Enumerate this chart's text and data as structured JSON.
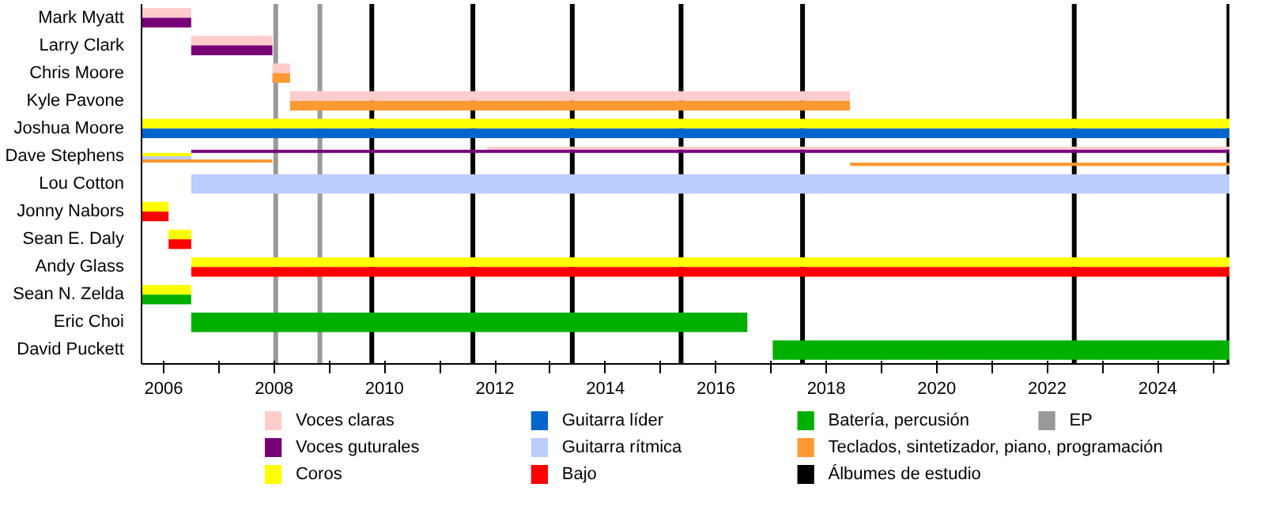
{
  "chart_data": {
    "type": "bar",
    "orientation": "horizontal",
    "categories": [
      "Mark Myatt",
      "Larry Clark",
      "Chris Moore",
      "Kyle Pavone",
      "Joshua Moore",
      "Dave Stephens",
      "Lou Cotton",
      "Jonny Nabors",
      "Sean E. Daly",
      "Andy Glass",
      "Sean N. Zelda",
      "Eric Choi",
      "David Puckett"
    ],
    "series": [
      {
        "name": "Voces claras",
        "color": "#ffcccc",
        "base": [
          2005.6,
          2006.5,
          2007.97,
          2008.29,
          null,
          2011.86,
          null,
          null,
          null,
          null,
          null,
          null,
          null
        ],
        "values": [
          0.9,
          1.47,
          0.32,
          10.14,
          null,
          13.44,
          null,
          null,
          null,
          null,
          null,
          null,
          null
        ]
      },
      {
        "name": "Voces guturales",
        "color": "#770077",
        "base": [
          2005.6,
          2006.5,
          null,
          null,
          null,
          2006.5,
          null,
          null,
          null,
          null,
          null,
          null,
          null
        ],
        "values": [
          0.9,
          1.47,
          null,
          null,
          null,
          18.8,
          null,
          null,
          null,
          null,
          null,
          null,
          null
        ]
      },
      {
        "name": "Coros",
        "color": "#ffff00",
        "base": [
          null,
          null,
          null,
          null,
          2005.6,
          2005.6,
          null,
          2005.6,
          2006.09,
          2006.5,
          2005.6,
          null,
          null
        ],
        "values": [
          null,
          null,
          null,
          null,
          19.7,
          0.9,
          null,
          0.49,
          0.41,
          18.8,
          0.9,
          null,
          null
        ]
      },
      {
        "name": "Guitarra líder",
        "color": "#0066cc",
        "base": [
          null,
          null,
          null,
          null,
          2005.6,
          null,
          null,
          null,
          null,
          null,
          null,
          null,
          null
        ],
        "values": [
          null,
          null,
          null,
          null,
          19.7,
          null,
          null,
          null,
          null,
          null,
          null,
          null,
          null
        ]
      },
      {
        "name": "Guitarra rítmica",
        "color": "#bbccff",
        "base": [
          null,
          null,
          null,
          null,
          null,
          2005.6,
          2006.5,
          null,
          null,
          null,
          null,
          null,
          null
        ],
        "values": [
          null,
          null,
          null,
          null,
          null,
          0.9,
          18.8,
          null,
          null,
          null,
          null,
          null,
          null
        ]
      },
      {
        "name": "Bajo",
        "color": "#ff0000",
        "base": [
          null,
          null,
          null,
          null,
          null,
          null,
          null,
          2005.6,
          2006.09,
          2006.5,
          null,
          null,
          null
        ],
        "values": [
          null,
          null,
          null,
          null,
          null,
          null,
          null,
          0.49,
          0.41,
          18.8,
          null,
          null,
          null
        ]
      },
      {
        "name": "Batería, percusión",
        "color": "#00b000",
        "base": [
          null,
          null,
          null,
          null,
          null,
          null,
          null,
          null,
          null,
          null,
          2005.6,
          2006.5,
          2017.03
        ],
        "values": [
          null,
          null,
          null,
          null,
          null,
          null,
          null,
          null,
          null,
          null,
          0.9,
          10.07,
          8.27
        ]
      },
      {
        "name": "Teclados, sintetizador, piano, programación",
        "color": "#ff9933",
        "base": [
          null,
          null,
          2007.97,
          2008.29,
          null,
          2005.6,
          null,
          null,
          null,
          null,
          null,
          null,
          null
        ],
        "values": [
          null,
          null,
          0.32,
          10.14,
          null,
          2.37,
          null,
          null,
          null,
          null,
          null,
          null,
          null
        ]
      },
      {
        "color": "#ff9933",
        "base": [
          null,
          null,
          null,
          null,
          null,
          2018.43,
          null,
          null,
          null,
          null,
          null,
          null,
          null
        ],
        "values": [
          null,
          null,
          null,
          null,
          null,
          6.87,
          null,
          null,
          null,
          null,
          null,
          null,
          null
        ]
      }
    ],
    "ref_lines": [
      {
        "axis": "x",
        "value": 2009.77,
        "label": "Álbumes de estudio",
        "color": "#000000"
      },
      {
        "axis": "x",
        "value": 2011.6,
        "label": null,
        "color": "#000000"
      },
      {
        "axis": "x",
        "value": 2013.4,
        "label": null,
        "color": "#000000"
      },
      {
        "axis": "x",
        "value": 2015.37,
        "label": null,
        "color": "#000000"
      },
      {
        "axis": "x",
        "value": 2017.57,
        "label": null,
        "color": "#000000"
      },
      {
        "axis": "x",
        "value": 2022.49,
        "label": null,
        "color": "#000000"
      },
      {
        "axis": "x",
        "value": 2025.29,
        "label": null,
        "color": "#000000"
      },
      {
        "axis": "x",
        "value": 2008.03,
        "label": "EP",
        "color": "#999999"
      },
      {
        "axis": "x",
        "value": 2008.83,
        "label": null,
        "color": "#999999"
      }
    ],
    "xlim": [
      2005.6,
      2025.3
    ],
    "xticks": [
      2006,
      {
        "value": 2007,
        "label": null
      },
      2008,
      {
        "value": 2009,
        "label": null
      },
      2010,
      {
        "value": 2011,
        "label": null
      },
      2012,
      {
        "value": 2013,
        "label": null
      },
      2014,
      {
        "value": 2015,
        "label": null
      },
      2016,
      {
        "value": 2017,
        "label": null
      },
      2018,
      {
        "value": 2019,
        "label": null
      },
      2020,
      {
        "value": 2021,
        "label": null
      },
      2022,
      {
        "value": 2023,
        "label": null
      },
      2024,
      {
        "value": 2025,
        "label": null
      }
    ],
    "grid": false,
    "legend": "bottom"
  }
}
